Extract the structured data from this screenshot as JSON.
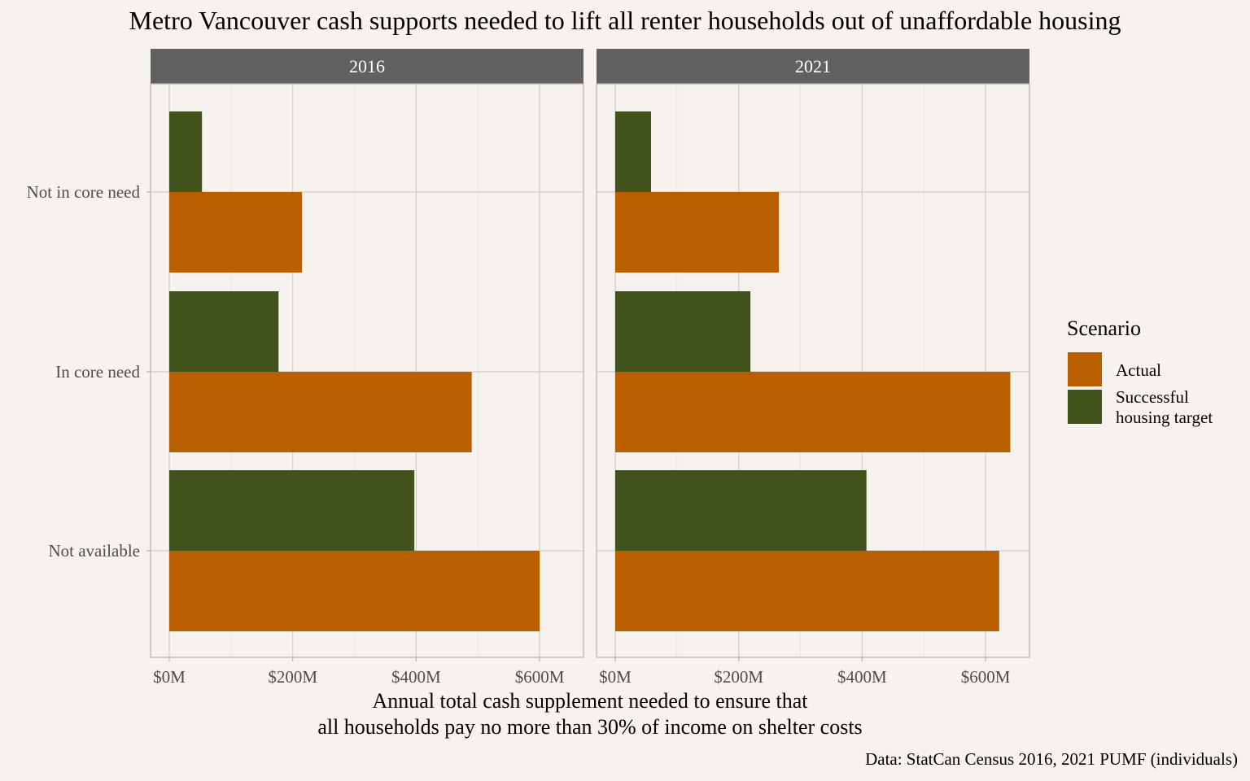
{
  "chart_data": {
    "type": "bar",
    "orientation": "horizontal",
    "title": "Metro Vancouver cash supports needed to lift all renter households out of unaffordable housing",
    "xlabel": "Annual total cash supplement needed to ensure that\nall households pay no more than 30% of income on shelter costs",
    "xlabel_lines": [
      "Annual total cash supplement needed to ensure that",
      "all households pay no more than 30% of income on shelter costs"
    ],
    "ylabel": "",
    "caption": "Data: StatCan Census 2016, 2021 PUMF (individuals)",
    "categories": [
      "Not in core need",
      "In core need",
      "Not available"
    ],
    "xlim": [
      0,
      670
    ],
    "x_ticks": [
      0,
      200,
      400,
      600
    ],
    "x_tick_labels": [
      "$0M",
      "$200M",
      "$400M",
      "$600M"
    ],
    "grid": true,
    "legend": {
      "title": "Scenario",
      "position": "right",
      "items": [
        {
          "label_lines": [
            "Actual"
          ],
          "color": "#b95f00"
        },
        {
          "label_lines": [
            "Successful",
            "housing target"
          ],
          "color": "#41531a"
        }
      ]
    },
    "panels": [
      {
        "facet": "2016",
        "series": [
          {
            "name": "Actual",
            "color": "#b95f00",
            "values": [
              215,
              490,
              600
            ]
          },
          {
            "name": "Successful housing target",
            "color": "#41531a",
            "values": [
              53,
              177,
              397
            ]
          }
        ]
      },
      {
        "facet": "2021",
        "series": [
          {
            "name": "Actual",
            "color": "#b95f00",
            "values": [
              265,
              640,
              622
            ]
          },
          {
            "name": "Successful housing target",
            "color": "#41531a",
            "values": [
              58,
              219,
              407
            ]
          }
        ]
      }
    ]
  }
}
